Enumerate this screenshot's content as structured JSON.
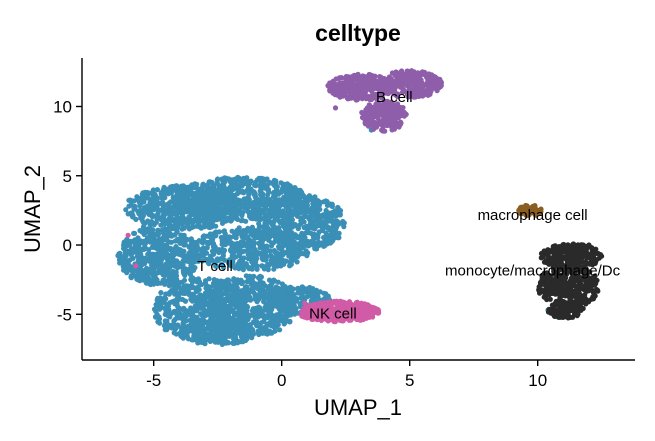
{
  "chart_data": {
    "type": "scatter",
    "title": "celltype",
    "xlabel": "UMAP_1",
    "ylabel": "UMAP_2",
    "xlim": [
      -7.8,
      13.8
    ],
    "ylim": [
      -8.3,
      13.5
    ],
    "xticks": [
      -5,
      0,
      5,
      10
    ],
    "yticks": [
      -5,
      0,
      5,
      10
    ],
    "xtick_labels": [
      "-5",
      "0",
      "5",
      "10"
    ],
    "ytick_labels": [
      "-5",
      "0",
      "5",
      "10"
    ],
    "grid": false,
    "legend": "none",
    "series": [
      {
        "name": "T cell",
        "color": "#3A8FB7",
        "label_pos": [
          -2.6,
          -1.6
        ],
        "regions": [
          {
            "cx": -4.8,
            "cy": -0.8,
            "rx": 1.6,
            "ry": 2.1,
            "n": 500
          },
          {
            "cx": -3.8,
            "cy": 2.7,
            "rx": 2.3,
            "ry": 1.6,
            "n": 550
          },
          {
            "cx": -1.6,
            "cy": 3.3,
            "rx": 2.6,
            "ry": 1.6,
            "n": 600
          },
          {
            "cx": 0.8,
            "cy": 1.6,
            "rx": 1.7,
            "ry": 2.0,
            "n": 450
          },
          {
            "cx": -1.2,
            "cy": -0.3,
            "rx": 2.3,
            "ry": 1.6,
            "n": 450
          },
          {
            "cx": -3.2,
            "cy": -4.6,
            "rx": 1.8,
            "ry": 2.3,
            "n": 500
          },
          {
            "cx": -1.2,
            "cy": -4.4,
            "rx": 1.8,
            "ry": 2.2,
            "n": 500
          },
          {
            "cx": 0.7,
            "cy": -4.0,
            "rx": 1.2,
            "ry": 1.0,
            "n": 200
          },
          {
            "cx": -2.5,
            "cy": -6.3,
            "rx": 1.5,
            "ry": 0.9,
            "n": 200
          }
        ],
        "extra_points": [
          [
            3.5,
            8.3
          ],
          [
            10.4,
            -4.7
          ],
          [
            10.3,
            -3.5
          ],
          [
            -5.4,
            1.3
          ]
        ]
      },
      {
        "name": "NK cell",
        "color": "#D15BA6",
        "label_pos": [
          2.0,
          -5.0
        ],
        "regions": [
          {
            "cx": 2.3,
            "cy": -4.8,
            "rx": 1.5,
            "ry": 0.75,
            "n": 350
          },
          {
            "cx": 1.4,
            "cy": -5.0,
            "rx": 0.7,
            "ry": 0.4,
            "n": 80
          }
        ],
        "extra_points": [
          [
            -6.0,
            0.7
          ],
          [
            -5.7,
            -1.5
          ],
          [
            0.9,
            -4.2
          ]
        ]
      },
      {
        "name": "B cell",
        "color": "#8E5EAA",
        "label_pos": [
          4.4,
          10.6
        ],
        "regions": [
          {
            "cx": 3.1,
            "cy": 11.4,
            "rx": 1.3,
            "ry": 0.95,
            "n": 280
          },
          {
            "cx": 5.0,
            "cy": 11.6,
            "rx": 1.3,
            "ry": 1.0,
            "n": 280
          },
          {
            "cx": 4.0,
            "cy": 9.3,
            "rx": 0.9,
            "ry": 1.1,
            "n": 200
          }
        ],
        "extra_points": [
          [
            2.1,
            9.9
          ]
        ]
      },
      {
        "name": "macrophage cell",
        "color": "#8A5E22",
        "label_pos": [
          9.8,
          2.1
        ],
        "regions": [
          {
            "cx": 9.7,
            "cy": 2.5,
            "rx": 0.45,
            "ry": 0.4,
            "n": 50
          }
        ],
        "extra_points": []
      },
      {
        "name": "monocyte/macrophage/Dc",
        "color": "#2B2A2A",
        "label_pos": [
          9.8,
          -1.9
        ],
        "regions": [
          {
            "cx": 11.3,
            "cy": -0.8,
            "rx": 1.2,
            "ry": 0.9,
            "n": 220
          },
          {
            "cx": 11.2,
            "cy": -3.0,
            "rx": 1.2,
            "ry": 1.6,
            "n": 320
          },
          {
            "cx": 11.1,
            "cy": -4.7,
            "rx": 0.7,
            "ry": 0.6,
            "n": 100
          }
        ],
        "extra_points": [
          [
            12.0,
            0.0
          ]
        ]
      }
    ]
  }
}
